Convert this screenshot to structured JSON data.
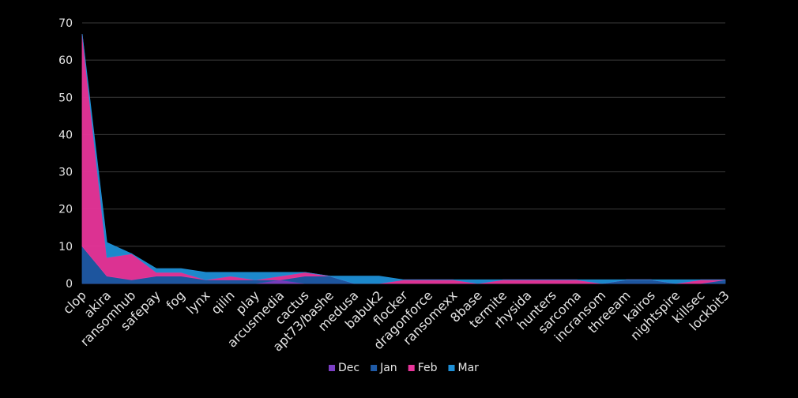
{
  "chart_data": {
    "type": "area",
    "stacked": true,
    "categories": [
      "clop",
      "akira",
      "ransomhub",
      "safepay",
      "fog",
      "lynx",
      "qilin",
      "play",
      "arcusmedia",
      "cactus",
      "apt73/bashe",
      "medusa",
      "babuk2",
      "flocker",
      "dragonforce",
      "ransomexx",
      "8base",
      "termite",
      "rhysida",
      "hunters",
      "sarcoma",
      "incransom",
      "threeam",
      "kairos",
      "nightspire",
      "killsec",
      "lockbit3"
    ],
    "series": [
      {
        "name": "Dec",
        "color": "#7b3fc4",
        "values": [
          0,
          0,
          0,
          0,
          0,
          0,
          0,
          0,
          1,
          0,
          0,
          0,
          0,
          0,
          0,
          0,
          0,
          0,
          0,
          0,
          0,
          0,
          0,
          0,
          0,
          0,
          0
        ]
      },
      {
        "name": "Jan",
        "color": "#1f5aa6",
        "values": [
          10,
          2,
          1,
          2,
          2,
          1,
          1,
          1,
          0,
          2,
          2,
          0,
          0,
          0,
          0,
          0,
          0,
          0,
          0,
          0,
          0,
          0,
          1,
          1,
          0,
          0,
          1
        ]
      },
      {
        "name": "Feb",
        "color": "#e8359a",
        "values": [
          57,
          5,
          7,
          1,
          1,
          0,
          1,
          0,
          1,
          1,
          0,
          0,
          0,
          1,
          1,
          1,
          0,
          1,
          1,
          1,
          1,
          0,
          0,
          0,
          0,
          1,
          0
        ]
      },
      {
        "name": "Mar",
        "color": "#1e8fd6",
        "values": [
          0,
          4,
          0,
          1,
          1,
          2,
          1,
          2,
          1,
          0,
          0,
          2,
          2,
          0,
          0,
          0,
          1,
          0,
          0,
          0,
          0,
          1,
          0,
          0,
          1,
          0,
          0
        ]
      }
    ],
    "ylim": [
      0,
      70
    ],
    "yticks": [
      "0",
      "10",
      "20",
      "30",
      "40",
      "50",
      "60",
      "70"
    ],
    "grid": true,
    "legend": "bottom"
  }
}
